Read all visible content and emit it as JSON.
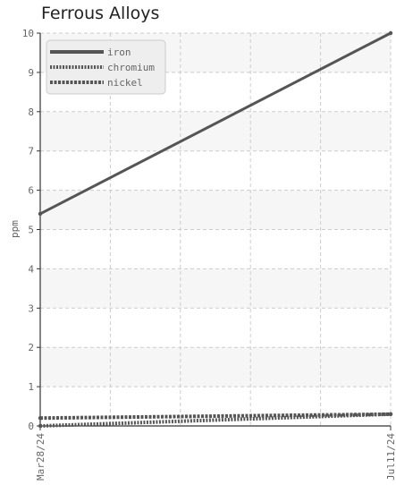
{
  "chart_data": {
    "type": "line",
    "title": "Ferrous Alloys",
    "ylabel": "ppm",
    "xlabel": "",
    "x": [
      "Mar28/24",
      "Jul11/24"
    ],
    "ylim": [
      0,
      10
    ],
    "yticks": [
      0,
      1,
      2,
      3,
      4,
      5,
      6,
      7,
      8,
      9,
      10
    ],
    "grid": true,
    "legend_position": "top-left",
    "series": [
      {
        "name": "iron",
        "values": [
          5.4,
          10.0
        ],
        "style": "solid",
        "color": "#555555"
      },
      {
        "name": "chromium",
        "values": [
          0.0,
          0.3
        ],
        "style": "dotted",
        "color": "#555555"
      },
      {
        "name": "nickel",
        "values": [
          0.2,
          0.3
        ],
        "style": "dashed",
        "color": "#555555"
      }
    ]
  }
}
